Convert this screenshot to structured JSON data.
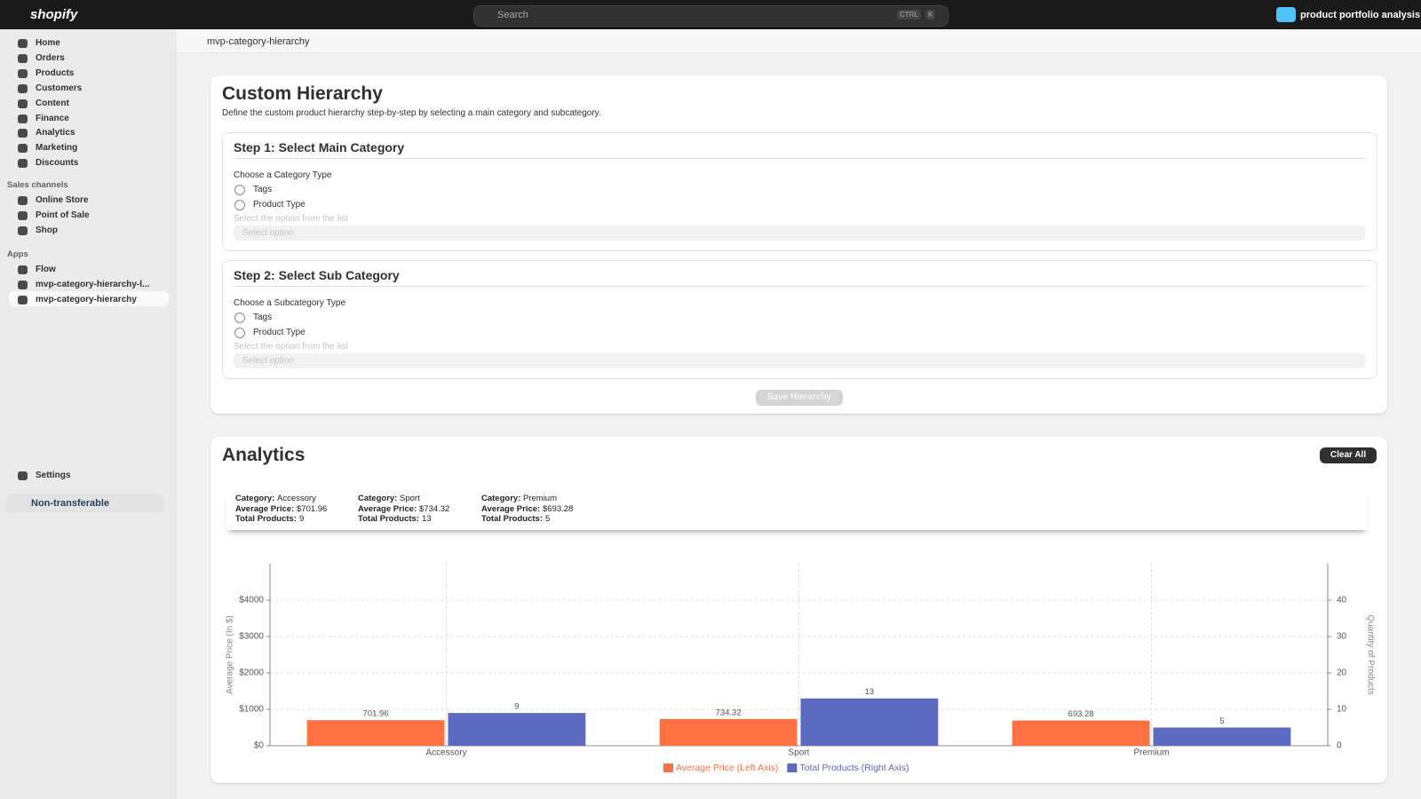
{
  "topbar": {
    "logo": "shopify",
    "search": "Search",
    "shortcut": [
      "CTRL",
      "K"
    ],
    "store": "product portfolio analysis"
  },
  "sidebar": {
    "nav": [
      "Home",
      "Orders",
      "Products",
      "Customers",
      "Content",
      "Finance",
      "Analytics",
      "Marketing",
      "Discounts"
    ],
    "sales_channels": {
      "title": "Sales channels",
      "items": [
        "Online Store",
        "Point of Sale",
        "Shop"
      ]
    },
    "apps": {
      "title": "Apps",
      "items": [
        "Flow",
        "mvp-category-hierarchy-l...",
        "mvp-category-hierarchy"
      ]
    },
    "settings": "Settings",
    "notice": "Non-transferable"
  },
  "page": {
    "title": "mvp-category-hierarchy"
  },
  "hierarchy": {
    "title": "Custom Hierarchy",
    "description": "Define the custom product hierarchy step-by-step by selecting a main category and subcategory.",
    "steps": [
      {
        "title": "Step 1: Select Main Category",
        "prompt": "Choose a Category Type",
        "options": [
          "Tags",
          "Product Type"
        ],
        "hint": "Select the option from the list",
        "select": "Select option"
      },
      {
        "title": "Step 2: Select Sub Category",
        "prompt": "Choose a Subcategory Type",
        "options": [
          "Tags",
          "Product Type"
        ],
        "hint": "Select the option from the list",
        "select": "Select option"
      }
    ],
    "save": "Save Hierarchy"
  },
  "analytics": {
    "title": "Analytics",
    "clear": "Clear All",
    "field_labels": [
      "Category:",
      "Average Price:",
      "Total Products:"
    ],
    "summary": [
      [
        "Accessory",
        "$701.96",
        "9"
      ],
      [
        "Sport",
        "$734.32",
        "13"
      ],
      [
        "Premium",
        "$693.28",
        "5"
      ]
    ]
  },
  "chart_data": {
    "type": "bar",
    "categories": [
      "Accessory",
      "Sport",
      "Premium"
    ],
    "series": [
      {
        "name": "Average Price (Left Axis)",
        "color": "#ff7043",
        "values": [
          701.96,
          734.32,
          693.28
        ]
      },
      {
        "name": "Total Products (Right Axis)",
        "color": "#5c6bc0",
        "values": [
          9,
          13,
          5
        ],
        "axis": "y2"
      }
    ],
    "ylabel": "Average Price (In $)",
    "y2label": "Quantity of Products",
    "ylim": [
      0,
      5000
    ],
    "yticks": [
      {
        "value": 0,
        "label": "$0"
      },
      {
        "value": 1000,
        "label": "$1000"
      },
      {
        "value": 2000,
        "label": "$2000"
      },
      {
        "value": 3000,
        "label": "$3000"
      },
      {
        "value": 4000,
        "label": "$4000"
      }
    ],
    "y2lim": [
      0,
      50
    ],
    "y2ticks": [
      0,
      10,
      20,
      30,
      40
    ],
    "grid": true,
    "legend": "bottom"
  }
}
